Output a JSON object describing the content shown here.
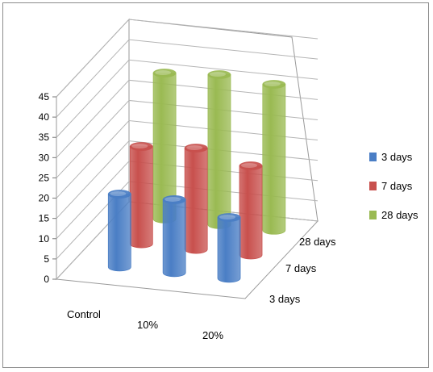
{
  "chart_data": {
    "type": "bar",
    "categories": [
      "Control",
      "10%",
      "20%"
    ],
    "series": [
      {
        "name": "3 days",
        "values": [
          18,
          18,
          15
        ],
        "color": "#4a7ec5"
      },
      {
        "name": "7 days",
        "values": [
          24,
          25,
          22
        ],
        "color": "#c8504d"
      },
      {
        "name": "28 days",
        "values": [
          36,
          37,
          36
        ],
        "color": "#9aba52"
      }
    ],
    "y_ticks": [
      "0",
      "5",
      "10",
      "15",
      "20",
      "25",
      "30",
      "35",
      "40",
      "45"
    ],
    "depth_labels": [
      "3 days",
      "7 days",
      "28 days"
    ],
    "ylim": [
      0,
      45
    ],
    "legend_position": "right",
    "grid": true,
    "style": "3d-cylinder"
  }
}
